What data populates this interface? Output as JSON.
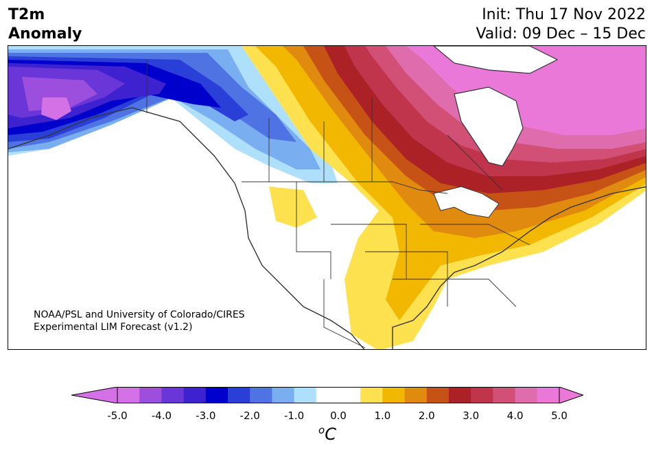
{
  "header": {
    "title_line1": "T2m",
    "title_line2": "Anomaly",
    "init": "Init: Thu 17 Nov 2022",
    "valid": "Valid: 09 Dec – 15 Dec"
  },
  "credit": {
    "line1": "NOAA/PSL and University of Colorado/CIRES",
    "line2": "Experimental LIM Forecast (v1.2)"
  },
  "colorbar": {
    "unit_sup": "o",
    "unit_base": "C",
    "ticks": [
      "-5.0",
      "-4.0",
      "-3.0",
      "-2.0",
      "-1.0",
      "0.0",
      "1.0",
      "2.0",
      "3.0",
      "4.0",
      "5.0"
    ],
    "colors": [
      "#d571e6",
      "#9b4fdc",
      "#6a36d8",
      "#3e22d0",
      "#0000cc",
      "#2a3ed8",
      "#4f73e3",
      "#79aef0",
      "#afe0fb",
      "#ffffff",
      "#ffffff",
      "#fde14e",
      "#f2b700",
      "#e18a10",
      "#c65215",
      "#ab2126",
      "#c0344c",
      "#d24f75",
      "#df6cad",
      "#ea78d8"
    ],
    "under_color": "#d571e6",
    "over_color": "#ea78d8"
  },
  "map": {
    "region": "North America",
    "variable": "2m temperature anomaly"
  }
}
